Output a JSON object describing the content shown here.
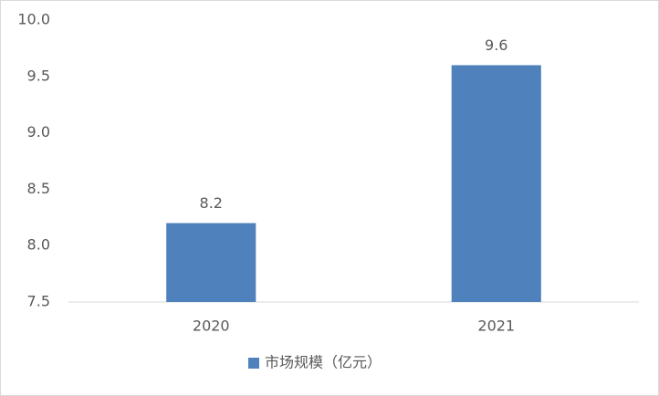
{
  "chart_data": {
    "type": "bar",
    "categories": [
      "2020",
      "2021"
    ],
    "series": [
      {
        "name": "市场规模（亿元）",
        "color": "#4f81bd",
        "values": [
          8.2,
          9.6
        ]
      }
    ],
    "ylim": [
      7.5,
      10
    ],
    "yticks": [
      7.5,
      {
        "value": 8,
        "label": "8.0"
      },
      8.5,
      {
        "value": 9,
        "label": "9.0"
      },
      9.5,
      {
        "value": 10,
        "label": "10.0"
      }
    ],
    "legend": "bottom"
  }
}
